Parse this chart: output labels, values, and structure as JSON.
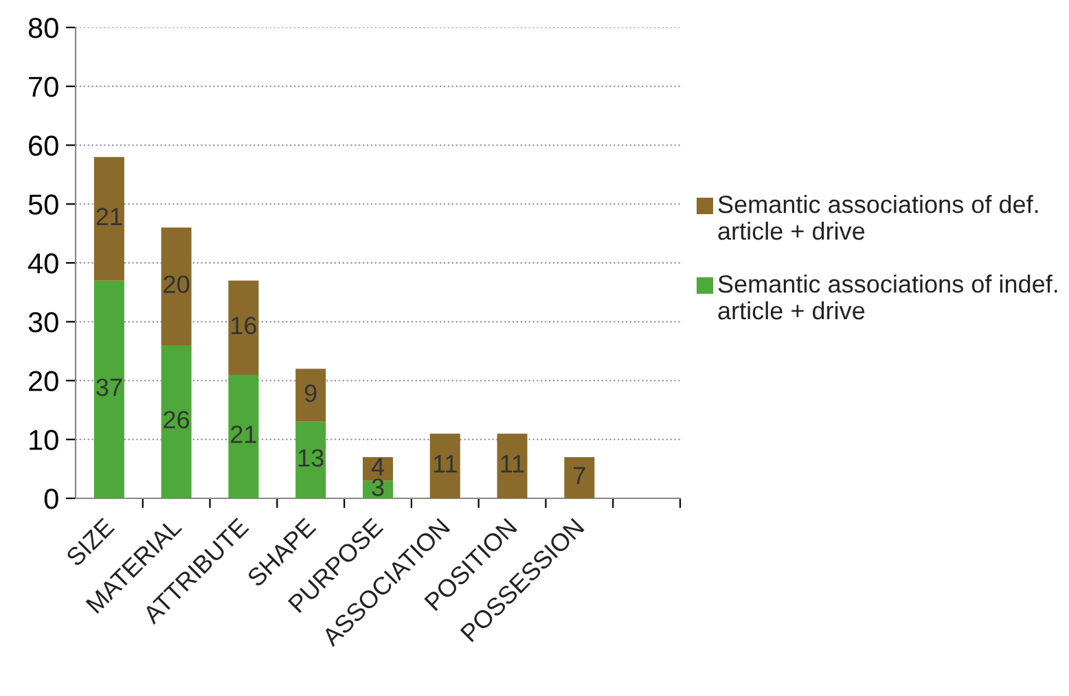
{
  "chart_data": {
    "type": "bar",
    "stacked": true,
    "categories": [
      "SIZE",
      "MATERIAL",
      "ATTRIBUTE",
      "SHAPE",
      "PURPOSE",
      "ASSOCIATION",
      "POSITION",
      "POSSESSION",
      null
    ],
    "series": [
      {
        "name": "Semantic associations of indef. article + drive",
        "color": "#4fa83a",
        "values": [
          37,
          26,
          21,
          13,
          3,
          null,
          null,
          null,
          null
        ]
      },
      {
        "name": "Semantic associations of def. article + drive",
        "color": "#8a6b2c",
        "values": [
          21,
          20,
          16,
          9,
          4,
          11,
          11,
          7,
          null
        ]
      }
    ],
    "ylim": [
      0,
      80
    ],
    "yticks": [
      0,
      10,
      20,
      30,
      40,
      50,
      60,
      70,
      80
    ],
    "grid": "y",
    "legend": "right",
    "data_labels": true
  }
}
